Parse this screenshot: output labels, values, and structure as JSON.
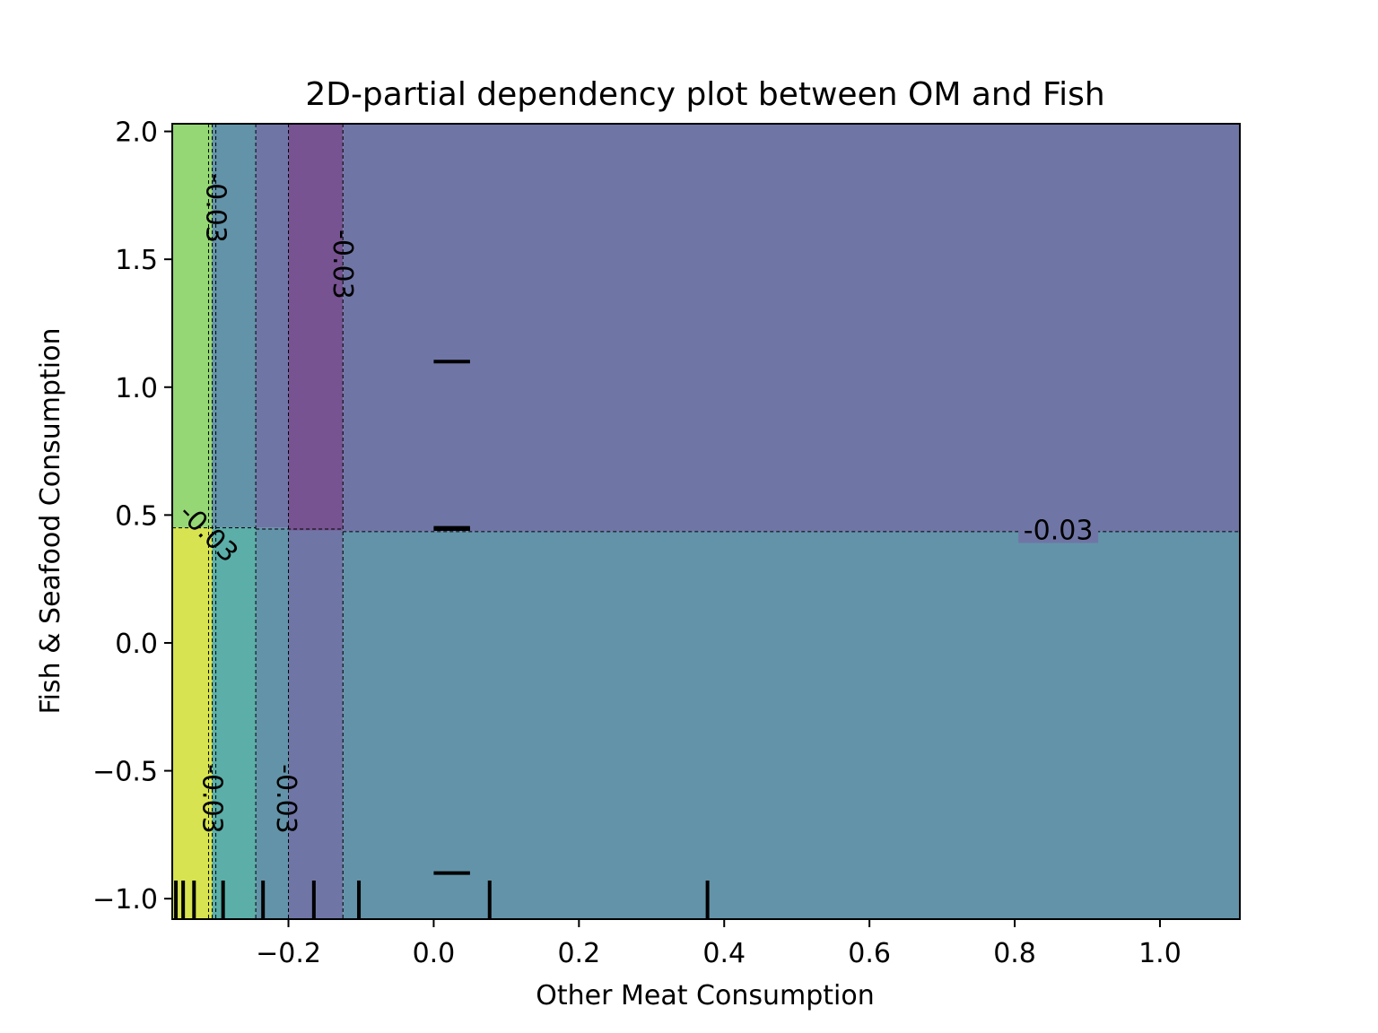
{
  "chart_data": {
    "type": "heatmap",
    "subtype": "2d-partial-dependence-contour",
    "title": "2D-partial dependency plot between OM and Fish",
    "xlabel": "Other Meat Consumption",
    "ylabel": "Fish & Seafood Consumption",
    "xlim": [
      -0.36,
      1.11
    ],
    "ylim": [
      -1.08,
      2.03
    ],
    "x_ticks": [
      -0.2,
      0.0,
      0.2,
      0.4,
      0.6,
      0.8,
      1.0
    ],
    "x_tick_labels": [
      "−0.2",
      "0.0",
      "0.2",
      "0.4",
      "0.6",
      "0.8",
      "1.0"
    ],
    "y_ticks": [
      -1.0,
      -0.5,
      0.0,
      0.5,
      1.0,
      1.5,
      2.0
    ],
    "y_tick_labels": [
      "−1.0",
      "−0.5",
      "0.0",
      "0.5",
      "1.0",
      "1.5",
      "2.0"
    ],
    "colormap": "viridis",
    "regions": [
      {
        "x0": -0.36,
        "x1": -0.305,
        "y0": 0.45,
        "y1": 2.03,
        "color": "#95d675",
        "level": "high"
      },
      {
        "x0": -0.36,
        "x1": -0.305,
        "y0": -1.08,
        "y1": 0.45,
        "color": "#d7e350",
        "level": "highest"
      },
      {
        "x0": -0.305,
        "x1": -0.245,
        "y0": 0.45,
        "y1": 2.03,
        "color": "#6393a8",
        "level": "mid"
      },
      {
        "x0": -0.305,
        "x1": -0.245,
        "y0": -1.08,
        "y1": 0.45,
        "color": "#5bafa8",
        "level": "mid-high"
      },
      {
        "x0": -0.245,
        "x1": -0.2,
        "y0": 0.45,
        "y1": 2.03,
        "color": "#6f76a6",
        "level": "low"
      },
      {
        "x0": -0.245,
        "x1": -0.2,
        "y0": -1.08,
        "y1": 0.45,
        "color": "#6393a8",
        "level": "mid"
      },
      {
        "x0": -0.2,
        "x1": -0.125,
        "y0": 0.44,
        "y1": 2.03,
        "color": "#775391",
        "level": "lowest"
      },
      {
        "x0": -0.2,
        "x1": -0.125,
        "y0": -1.08,
        "y1": 0.44,
        "color": "#6f76a6",
        "level": "low"
      },
      {
        "x0": -0.125,
        "x1": 1.11,
        "y0": 0.435,
        "y1": 2.03,
        "color": "#6f76a6",
        "level": "low"
      },
      {
        "x0": -0.125,
        "x1": 1.11,
        "y0": -1.08,
        "y1": 0.435,
        "color": "#6393a8",
        "level": "mid"
      }
    ],
    "contour_lines": [
      {
        "orientation": "vertical",
        "value": -0.31
      },
      {
        "orientation": "vertical",
        "value": -0.305
      },
      {
        "orientation": "vertical",
        "value": -0.3
      },
      {
        "orientation": "vertical",
        "value": -0.245
      },
      {
        "orientation": "vertical",
        "value": -0.2
      },
      {
        "orientation": "vertical",
        "value": -0.125
      },
      {
        "orientation": "horizontal",
        "value": 0.435
      }
    ],
    "contour_labels": [
      {
        "text": "-0.03",
        "x": -0.3,
        "y": 1.7,
        "rotation": 90
      },
      {
        "text": "-0.03",
        "x": -0.125,
        "y": 1.48,
        "rotation": 90
      },
      {
        "text": "-0.03",
        "x": -0.31,
        "y": 0.43,
        "rotation": 45
      },
      {
        "text": "-0.03",
        "x": 0.86,
        "y": 0.44,
        "rotation": 0
      },
      {
        "text": "-0.03",
        "x": -0.305,
        "y": -0.61,
        "rotation": 90
      },
      {
        "text": "-0.03",
        "x": -0.203,
        "y": -0.61,
        "rotation": 90
      }
    ],
    "rug_x": [
      -0.355,
      -0.345,
      -0.33,
      -0.29,
      -0.235,
      -0.165,
      -0.103,
      0.077,
      0.377
    ],
    "rug_y": [
      1.1,
      0.445,
      0.45,
      -0.9
    ]
  }
}
